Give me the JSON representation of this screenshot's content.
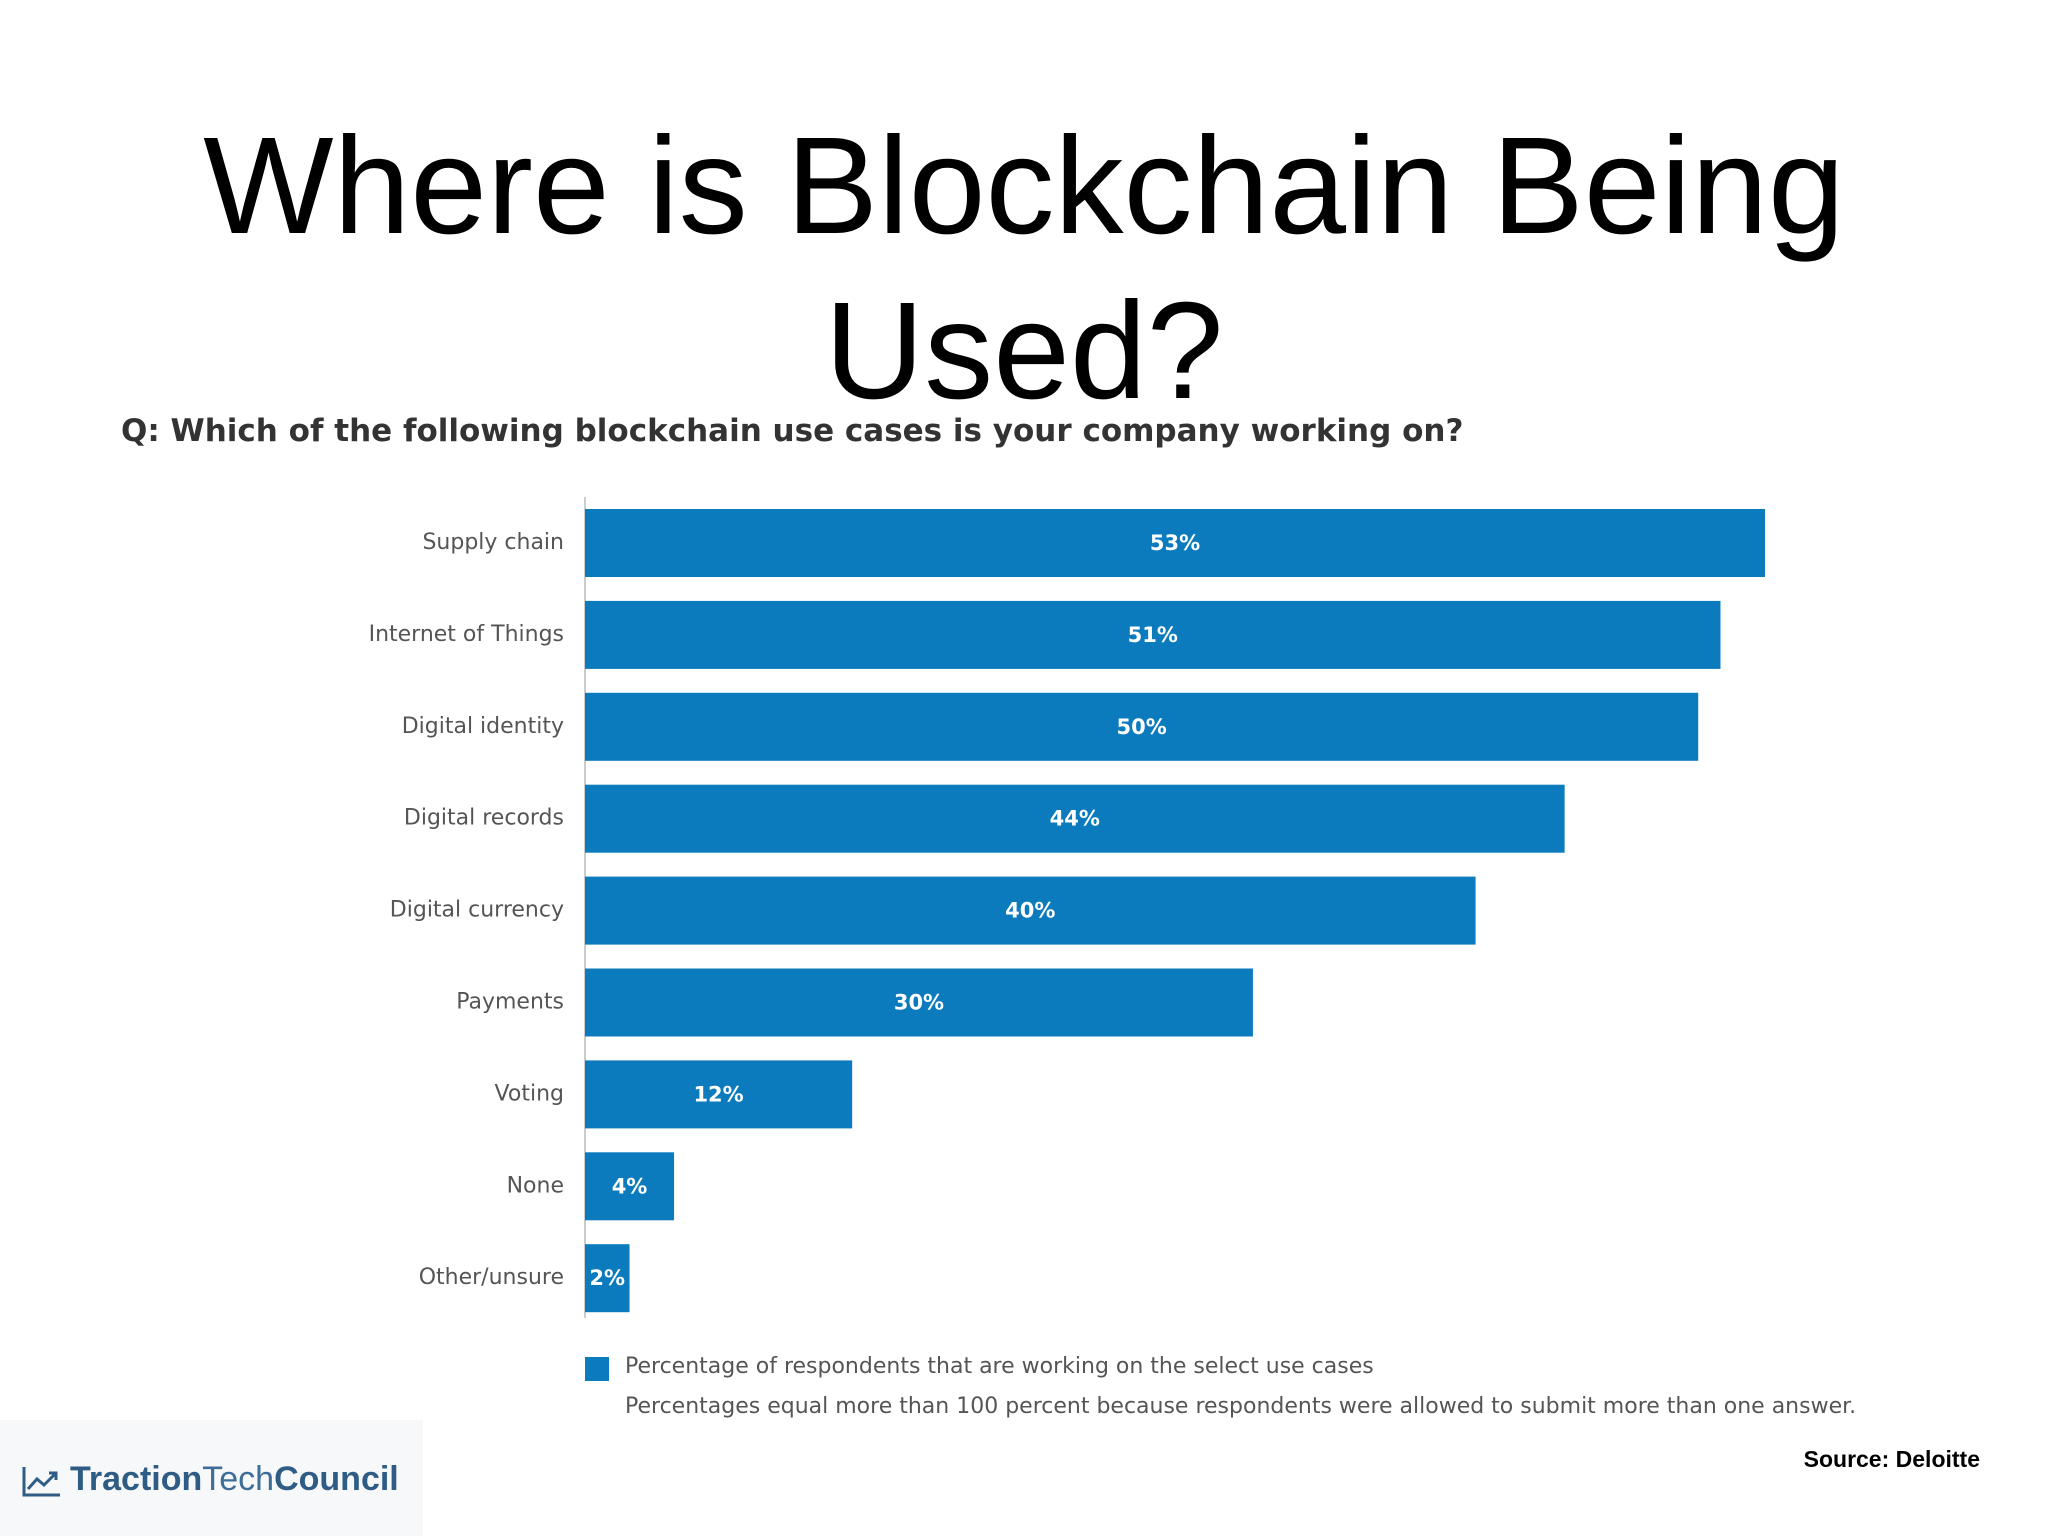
{
  "slide": {
    "title_line1": "Where is Blockchain Being",
    "title_line2": "Used?",
    "source": "Source: Deloitte"
  },
  "logo": {
    "icon": "line-chart-icon",
    "part1": "Traction",
    "part2": "Tech",
    "part3": "Council"
  },
  "colors": {
    "bar": "#0b7bbd",
    "axis": "#cccccc",
    "logo": "#2e5c84"
  },
  "chart_data": {
    "type": "bar",
    "orientation": "horizontal",
    "title": "Q: Which of the following blockchain use cases is your company working on?",
    "categories": [
      "Supply chain",
      "Internet of Things",
      "Digital identity",
      "Digital records",
      "Digital currency",
      "Payments",
      "Voting",
      "None",
      "Other/unsure"
    ],
    "series": [
      {
        "name": "Percentage of respondents that are working on the select use cases",
        "values": [
          53,
          51,
          50,
          44,
          40,
          30,
          12,
          4,
          2
        ]
      }
    ],
    "value_labels": [
      "53%",
      "51%",
      "50%",
      "44%",
      "40%",
      "30%",
      "12%",
      "4%",
      "2%"
    ],
    "note": "Percentages equal more than 100 percent because respondents were allowed to submit more than one answer.",
    "xlim": [
      0,
      53
    ],
    "grid": false,
    "legend_position": "bottom"
  }
}
